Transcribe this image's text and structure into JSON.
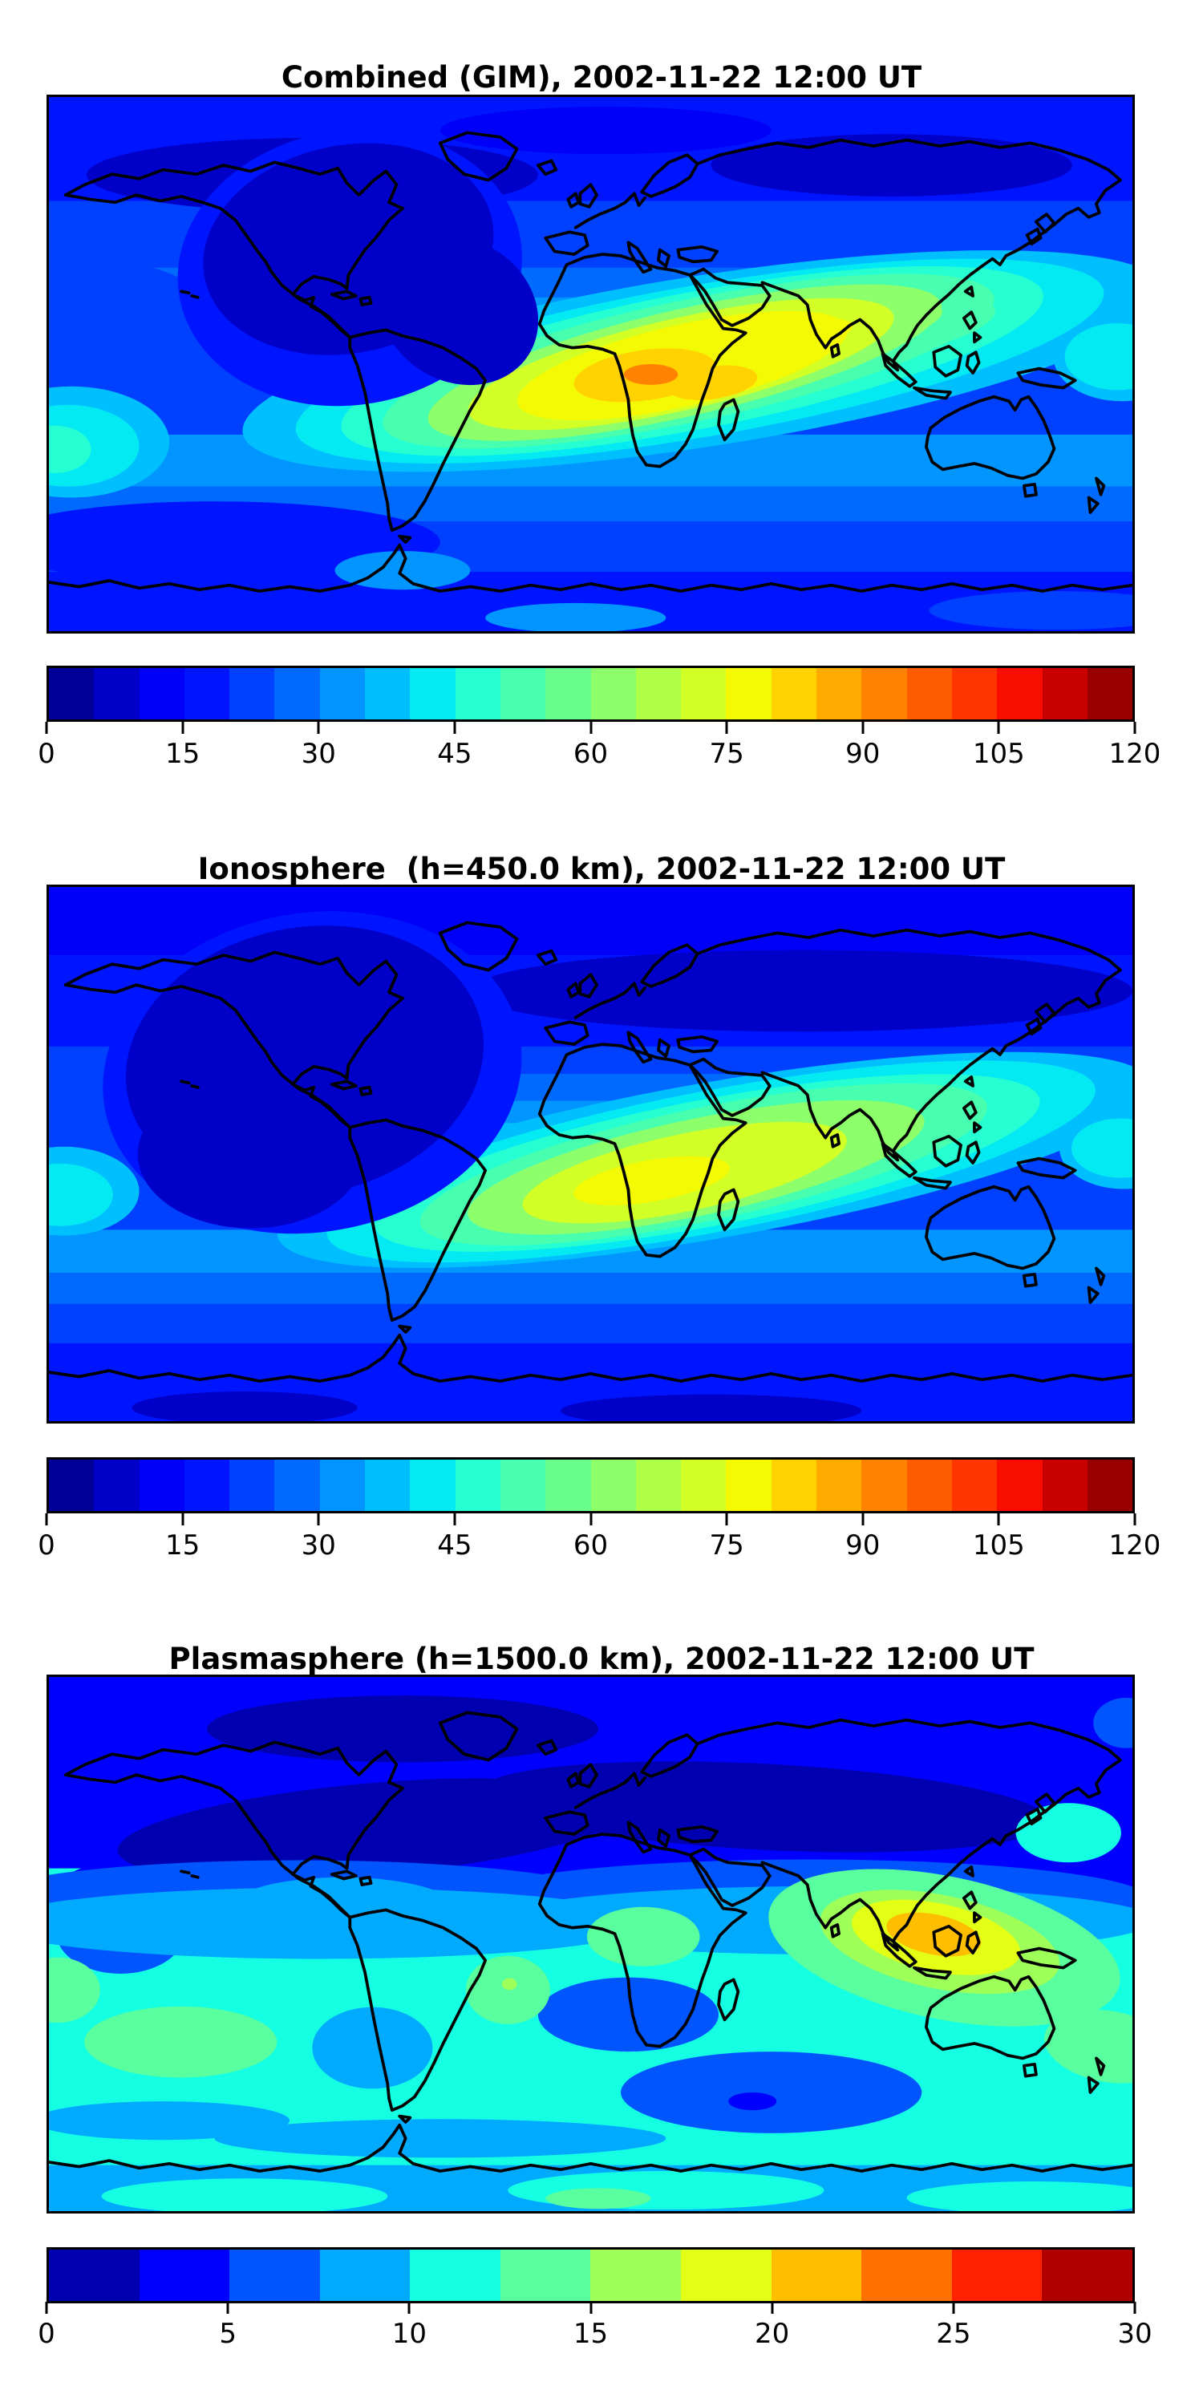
{
  "figure": {
    "background": "#ffffff",
    "text_color": "#000000",
    "coastline_color": "#000000",
    "colormap_name": "jet"
  },
  "panels": [
    {
      "title": "Combined (GIM), 2002-11-22 12:00 UT",
      "colorbar": {
        "min": 0,
        "max": 120,
        "contour_interval": 5,
        "ticks": [
          0,
          15,
          30,
          45,
          60,
          75,
          90,
          105,
          120
        ],
        "segment_colors": [
          "#000098",
          "#0000C8",
          "#0000F8",
          "#0015FF",
          "#0040FF",
          "#006AFF",
          "#0095FF",
          "#00BFFF",
          "#03EAF3",
          "#26FFD1",
          "#48FFAF",
          "#6AFF8D",
          "#8DFF6A",
          "#AFFF48",
          "#D1FF26",
          "#F3FA03",
          "#FFD200",
          "#FFAB00",
          "#FF8300",
          "#FF5C00",
          "#FF3500",
          "#F80D00",
          "#C80000",
          "#980000"
        ]
      }
    },
    {
      "title": "Ionosphere  (h=450.0 km), 2002-11-22 12:00 UT",
      "colorbar": {
        "min": 0,
        "max": 120,
        "contour_interval": 5,
        "ticks": [
          0,
          15,
          30,
          45,
          60,
          75,
          90,
          105,
          120
        ],
        "segment_colors": [
          "#000098",
          "#0000C8",
          "#0000F8",
          "#0015FF",
          "#0040FF",
          "#006AFF",
          "#0095FF",
          "#00BFFF",
          "#03EAF3",
          "#26FFD1",
          "#48FFAF",
          "#6AFF8D",
          "#8DFF6A",
          "#AFFF48",
          "#D1FF26",
          "#F3FA03",
          "#FFD200",
          "#FFAB00",
          "#FF8300",
          "#FF5C00",
          "#FF3500",
          "#F80D00",
          "#C80000",
          "#980000"
        ]
      }
    },
    {
      "title": "Plasmasphere (h=1500.0 km), 2002-11-22 12:00 UT",
      "colorbar": {
        "min": 0,
        "max": 30,
        "contour_interval": 2.5,
        "ticks": [
          0,
          5,
          10,
          15,
          20,
          25,
          30
        ],
        "segment_colors": [
          "#0000B0",
          "#0000FF",
          "#0055FF",
          "#00AAFF",
          "#15FFE2",
          "#59FF9E",
          "#9EFF59",
          "#E2FF15",
          "#FFBE00",
          "#FF7000",
          "#FF2100",
          "#B00000"
        ]
      }
    }
  ],
  "chart_data": [
    {
      "type": "heatmap",
      "title": "Combined (GIM), 2002-11-22 12:00 UT",
      "projection": "equirectangular",
      "lon_range": [
        -180,
        180
      ],
      "lat_range": [
        -90,
        90
      ],
      "colormap": "jet",
      "value_range": [
        0,
        120
      ],
      "contour_interval": 5,
      "colorbar_ticks": [
        0,
        15,
        30,
        45,
        60,
        75,
        90,
        105,
        120
      ],
      "grid": {
        "lons": [
          -150,
          -100,
          -50,
          0,
          50,
          100,
          150
        ],
        "lats": [
          75,
          50,
          25,
          0,
          -25,
          -50,
          -75
        ],
        "values": [
          [
            12,
            10,
            10,
            12,
            12,
            10,
            12
          ],
          [
            10,
            7,
            8,
            18,
            20,
            15,
            12
          ],
          [
            15,
            8,
            8,
            30,
            40,
            30,
            22
          ],
          [
            18,
            10,
            14,
            62,
            68,
            52,
            38
          ],
          [
            22,
            18,
            30,
            55,
            50,
            40,
            32
          ],
          [
            25,
            20,
            25,
            30,
            32,
            30,
            28
          ],
          [
            12,
            12,
            15,
            15,
            15,
            12,
            12
          ]
        ]
      },
      "peak": {
        "lon": 22,
        "lat": -5,
        "value": 88
      },
      "low_region": {
        "description": "dark-blue minimum over North America / NE Pacific night sector",
        "approx_value": 7
      }
    },
    {
      "type": "heatmap",
      "title": "Ionosphere  (h=450.0 km), 2002-11-22 12:00 UT",
      "projection": "equirectangular",
      "lon_range": [
        -180,
        180
      ],
      "lat_range": [
        -90,
        90
      ],
      "colormap": "jet",
      "value_range": [
        0,
        120
      ],
      "contour_interval": 5,
      "colorbar_ticks": [
        0,
        15,
        30,
        45,
        60,
        75,
        90,
        105,
        120
      ],
      "grid": {
        "lons": [
          -150,
          -100,
          -50,
          0,
          50,
          100,
          150
        ],
        "lats": [
          75,
          50,
          25,
          0,
          -25,
          -50,
          -75
        ],
        "values": [
          [
            8,
            8,
            8,
            10,
            10,
            8,
            8
          ],
          [
            7,
            5,
            6,
            14,
            16,
            12,
            10
          ],
          [
            10,
            6,
            6,
            24,
            32,
            24,
            18
          ],
          [
            12,
            7,
            10,
            50,
            58,
            42,
            30
          ],
          [
            18,
            14,
            24,
            48,
            42,
            34,
            26
          ],
          [
            20,
            16,
            20,
            25,
            26,
            24,
            22
          ],
          [
            8,
            10,
            12,
            12,
            12,
            10,
            10
          ]
        ]
      },
      "peak": {
        "lon": 24,
        "lat": -7,
        "value": 68
      },
      "low_region": {
        "description": "dark-blue minimum over North America extending to equatorial east Pacific",
        "approx_value": 5
      }
    },
    {
      "type": "heatmap",
      "title": "Plasmasphere (h=1500.0 km), 2002-11-22 12:00 UT",
      "projection": "equirectangular",
      "lon_range": [
        -180,
        180
      ],
      "lat_range": [
        -90,
        90
      ],
      "colormap": "jet",
      "value_range": [
        0,
        30
      ],
      "contour_interval": 2.5,
      "colorbar_ticks": [
        0,
        5,
        10,
        15,
        20,
        25,
        30
      ],
      "grid": {
        "lons": [
          -150,
          -100,
          -50,
          0,
          50,
          100,
          150
        ],
        "lats": [
          75,
          50,
          25,
          0,
          -25,
          -50,
          -75
        ],
        "values": [
          [
            5,
            4,
            4,
            5,
            5,
            4,
            5
          ],
          [
            4,
            3,
            3,
            3,
            4,
            5,
            6
          ],
          [
            8,
            7,
            7,
            8,
            9,
            11,
            9
          ],
          [
            7,
            10,
            11,
            11,
            12,
            24,
            13
          ],
          [
            13,
            15,
            12,
            11,
            12,
            16,
            13
          ],
          [
            11,
            12,
            12,
            13,
            12,
            11,
            12
          ],
          [
            9,
            10,
            9,
            10,
            9,
            9,
            10
          ]
        ]
      },
      "peak": {
        "lon": 114,
        "lat": -2,
        "value": 26
      },
      "low_region": {
        "description": "dark-navy minimum band over northern mid-high latitudes (N. America, N. Atlantic, Europe, Siberia)",
        "approx_value": 2
      }
    }
  ]
}
